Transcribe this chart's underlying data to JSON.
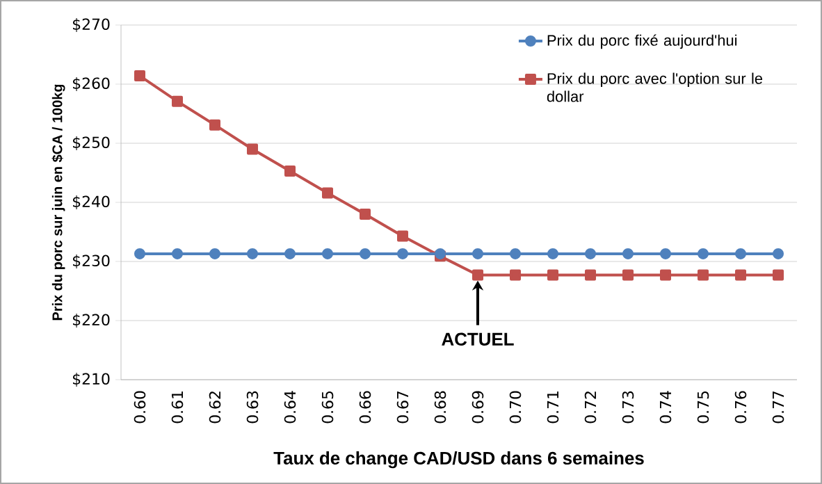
{
  "chart_data": {
    "type": "line",
    "xlabel": "Taux de change CAD/USD dans 6 semaines",
    "ylabel": "Prix du porc sur juin en $CA / 100kg",
    "categories": [
      "0.60",
      "0.61",
      "0.62",
      "0.63",
      "0.64",
      "0.65",
      "0.66",
      "0.67",
      "0.68",
      "0.69",
      "0.70",
      "0.71",
      "0.72",
      "0.73",
      "0.74",
      "0.75",
      "0.76",
      "0.77"
    ],
    "series": [
      {
        "name": "Prix du porc fixé aujourd'hui",
        "color": "#4f81bd",
        "marker": "circle",
        "values": [
          231.3,
          231.3,
          231.3,
          231.3,
          231.3,
          231.3,
          231.3,
          231.3,
          231.3,
          231.3,
          231.3,
          231.3,
          231.3,
          231.3,
          231.3,
          231.3,
          231.3,
          231.3
        ]
      },
      {
        "name": "Prix du porc avec l'option sur le dollar",
        "color": "#c0504d",
        "marker": "square",
        "values": [
          261.4,
          257.1,
          253.1,
          249.0,
          245.3,
          241.6,
          238.0,
          234.3,
          230.9,
          227.7,
          227.7,
          227.7,
          227.7,
          227.7,
          227.7,
          227.7,
          227.7,
          227.7
        ]
      }
    ],
    "ylim": [
      210,
      270
    ],
    "yticks": [
      {
        "value": 210,
        "label": "$210"
      },
      {
        "value": 220,
        "label": "$220"
      },
      {
        "value": 230,
        "label": "$230"
      },
      {
        "value": 240,
        "label": "$240"
      },
      {
        "value": 250,
        "label": "$250"
      },
      {
        "value": 260,
        "label": "$260"
      },
      {
        "value": 270,
        "label": "$270"
      }
    ],
    "grid": "y",
    "legend": "top right",
    "annotations": [
      {
        "text": "ACTUEL",
        "x": "0.69",
        "y": 227.7
      }
    ]
  }
}
